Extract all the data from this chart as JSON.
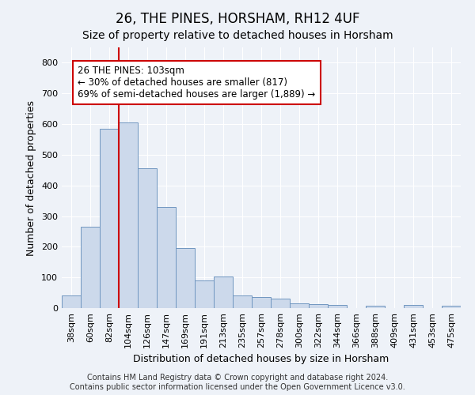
{
  "title": "26, THE PINES, HORSHAM, RH12 4UF",
  "subtitle": "Size of property relative to detached houses in Horsham",
  "xlabel": "Distribution of detached houses by size in Horsham",
  "ylabel": "Number of detached properties",
  "bar_color": "#ccd9eb",
  "bar_edge_color": "#7096c0",
  "background_color": "#eef2f8",
  "categories": [
    "38sqm",
    "60sqm",
    "82sqm",
    "104sqm",
    "126sqm",
    "147sqm",
    "169sqm",
    "191sqm",
    "213sqm",
    "235sqm",
    "257sqm",
    "278sqm",
    "300sqm",
    "322sqm",
    "344sqm",
    "366sqm",
    "388sqm",
    "409sqm",
    "431sqm",
    "453sqm",
    "475sqm"
  ],
  "values": [
    40,
    265,
    585,
    605,
    455,
    330,
    195,
    90,
    103,
    40,
    37,
    30,
    15,
    14,
    10,
    0,
    7,
    0,
    10,
    0,
    7
  ],
  "vline_x_index": 3,
  "vline_color": "#cc0000",
  "annotation_line1": "26 THE PINES: 103sqm",
  "annotation_line2": "← 30% of detached houses are smaller (817)",
  "annotation_line3": "69% of semi-detached houses are larger (1,889) →",
  "ylim": [
    0,
    850
  ],
  "yticks": [
    0,
    100,
    200,
    300,
    400,
    500,
    600,
    700,
    800
  ],
  "footer_line1": "Contains HM Land Registry data © Crown copyright and database right 2024.",
  "footer_line2": "Contains public sector information licensed under the Open Government Licence v3.0.",
  "grid_color": "#ffffff",
  "title_fontsize": 12,
  "subtitle_fontsize": 10,
  "axis_label_fontsize": 9,
  "ylabel_fontsize": 9,
  "tick_fontsize": 8,
  "annotation_fontsize": 8.5,
  "footer_fontsize": 7
}
